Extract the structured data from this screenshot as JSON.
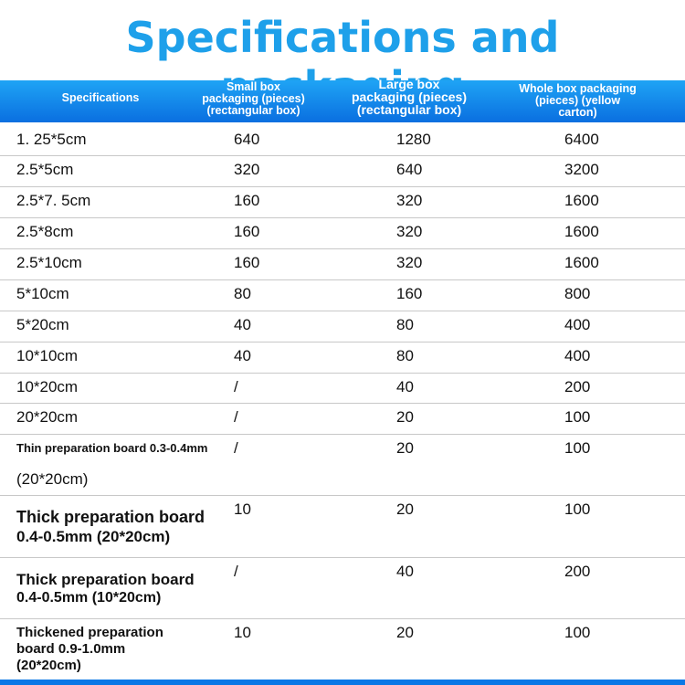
{
  "title": "Specifications and packaging",
  "table": {
    "headers": [
      [
        "Specifications"
      ],
      [
        "Small box",
        "packaging (pieces)",
        "(rectangular box)"
      ],
      [
        "Large box",
        "packaging (pieces)",
        "(rectangular box)"
      ],
      [
        "Whole box packaging",
        "(pieces) (yellow",
        "carton)"
      ]
    ],
    "rows": [
      [
        [
          "1. 25*5cm"
        ],
        "640",
        "1280",
        "6400"
      ],
      [
        [
          "2.5*5cm"
        ],
        "320",
        "640",
        "3200"
      ],
      [
        [
          "2.5*7. 5cm"
        ],
        "160",
        "320",
        "1600"
      ],
      [
        [
          "2.5*8cm"
        ],
        "160",
        "320",
        "1600"
      ],
      [
        [
          "2.5*10cm"
        ],
        "160",
        "320",
        "1600"
      ],
      [
        [
          "5*10cm"
        ],
        "80",
        "160",
        "800"
      ],
      [
        [
          "5*20cm"
        ],
        "40",
        "80",
        "400"
      ],
      [
        [
          "10*10cm"
        ],
        "40",
        "80",
        "400"
      ],
      [
        [
          "10*20cm"
        ],
        "/",
        "40",
        "200"
      ],
      [
        [
          "20*20cm"
        ],
        "/",
        "20",
        "100"
      ],
      [
        [
          "Thin preparation board 0.3-0.4mm",
          "(20*20cm)"
        ],
        "/",
        "20",
        "100"
      ],
      [
        [
          "Thick preparation board",
          "0.4-0.5mm (20*20cm)"
        ],
        "10",
        "20",
        "100"
      ],
      [
        [
          "Thick preparation board",
          "0.4-0.5mm (10*20cm)"
        ],
        "/",
        "40",
        "200"
      ],
      [
        [
          "Thickened preparation",
          "board 0.9-1.0mm",
          "(20*20cm)"
        ],
        "10",
        "20",
        "100"
      ]
    ]
  }
}
